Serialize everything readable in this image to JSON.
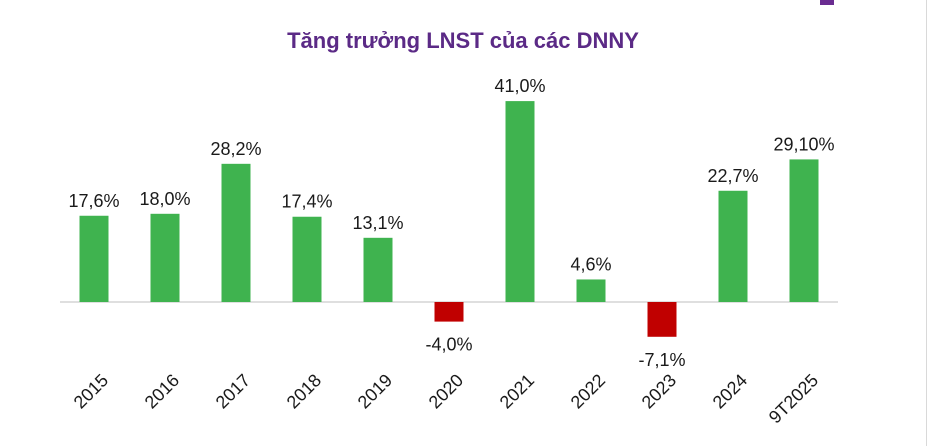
{
  "chart_data": {
    "type": "bar",
    "title": "Tăng trưởng LNST của các DNNY",
    "categories": [
      "2015",
      "2016",
      "2017",
      "2018",
      "2019",
      "2020",
      "2021",
      "2022",
      "2023",
      "2024",
      "9T2025"
    ],
    "values": [
      17.6,
      18.0,
      28.2,
      17.4,
      13.1,
      -4.0,
      41.0,
      4.6,
      -7.1,
      22.7,
      29.1
    ],
    "value_labels": [
      "17,6%",
      "18,0%",
      "28,2%",
      "17,4%",
      "13,1%",
      "-4,0%",
      "41,0%",
      "4,6%",
      "-7,1%",
      "22,7%",
      "29,10%"
    ],
    "xlabel": "",
    "ylabel": "",
    "grid": false,
    "colors": {
      "positive": "#3fb34f",
      "negative": "#c00000",
      "title": "#5b2a86",
      "axis": "#bfbfbf"
    }
  }
}
